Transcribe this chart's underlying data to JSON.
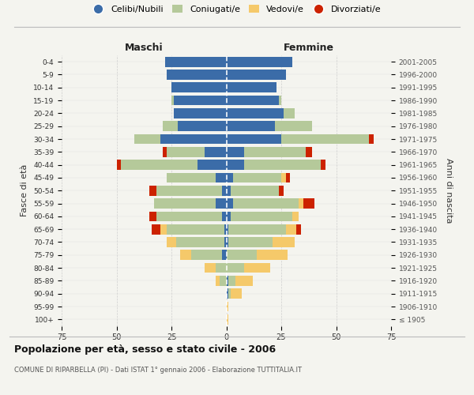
{
  "age_groups": [
    "100+",
    "95-99",
    "90-94",
    "85-89",
    "80-84",
    "75-79",
    "70-74",
    "65-69",
    "60-64",
    "55-59",
    "50-54",
    "45-49",
    "40-44",
    "35-39",
    "30-34",
    "25-29",
    "20-24",
    "15-19",
    "10-14",
    "5-9",
    "0-4"
  ],
  "birth_years": [
    "≤ 1905",
    "1906-1910",
    "1911-1915",
    "1916-1920",
    "1921-1925",
    "1926-1930",
    "1931-1935",
    "1936-1940",
    "1941-1945",
    "1946-1950",
    "1951-1955",
    "1956-1960",
    "1961-1965",
    "1966-1970",
    "1971-1975",
    "1976-1980",
    "1981-1985",
    "1986-1990",
    "1991-1995",
    "1996-2000",
    "2001-2005"
  ],
  "male_celibi": [
    0,
    0,
    0,
    0,
    0,
    2,
    1,
    1,
    2,
    5,
    2,
    5,
    13,
    10,
    30,
    22,
    24,
    24,
    25,
    27,
    28
  ],
  "male_coniugati": [
    0,
    0,
    0,
    3,
    5,
    14,
    22,
    26,
    30,
    28,
    30,
    22,
    35,
    17,
    12,
    7,
    0,
    1,
    0,
    0,
    0
  ],
  "male_vedovi": [
    0,
    0,
    0,
    2,
    5,
    5,
    4,
    3,
    0,
    0,
    0,
    0,
    0,
    0,
    0,
    0,
    0,
    0,
    0,
    0,
    0
  ],
  "male_divorziati": [
    0,
    0,
    0,
    0,
    0,
    0,
    0,
    4,
    3,
    0,
    3,
    0,
    2,
    2,
    0,
    0,
    0,
    0,
    0,
    0,
    0
  ],
  "female_nubili": [
    0,
    0,
    1,
    1,
    0,
    0,
    1,
    1,
    2,
    3,
    2,
    3,
    8,
    8,
    25,
    22,
    26,
    24,
    23,
    27,
    30
  ],
  "female_coniugate": [
    0,
    0,
    1,
    3,
    8,
    14,
    20,
    26,
    28,
    30,
    22,
    22,
    35,
    28,
    40,
    17,
    5,
    1,
    0,
    0,
    0
  ],
  "female_vedove": [
    1,
    1,
    5,
    8,
    12,
    14,
    10,
    5,
    3,
    2,
    0,
    2,
    0,
    0,
    0,
    0,
    0,
    0,
    0,
    0,
    0
  ],
  "female_divorziate": [
    0,
    0,
    0,
    0,
    0,
    0,
    0,
    2,
    0,
    5,
    2,
    2,
    2,
    3,
    2,
    0,
    0,
    0,
    0,
    0,
    0
  ],
  "color_celibi": "#3b6ca8",
  "color_coniugati": "#b5c99a",
  "color_vedovi": "#f5c96a",
  "color_divorziati": "#cc2200",
  "xlim": 75,
  "title": "Popolazione per età, sesso e stato civile - 2006",
  "subtitle": "COMUNE DI RIPARBELLA (PI) - Dati ISTAT 1° gennaio 2006 - Elaborazione TUTTITALIA.IT",
  "ylabel_left": "Fasce di età",
  "ylabel_right": "Anni di nascita",
  "label_maschi": "Maschi",
  "label_femmine": "Femmine",
  "legend_labels": [
    "Celibi/Nubili",
    "Coniugati/e",
    "Vedovi/e",
    "Divorziati/e"
  ],
  "bg_color": "#f4f4ef",
  "grid_color": "#cccccc"
}
